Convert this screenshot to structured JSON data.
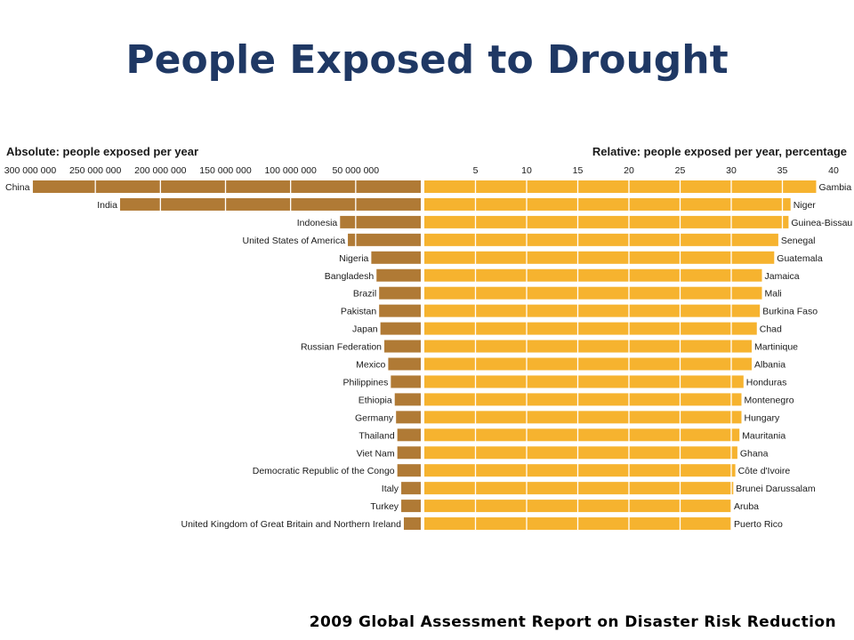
{
  "slide": {
    "title": "People Exposed to Drought",
    "footer": "2009 Global Assessment Report on Disaster Risk Reduction"
  },
  "colors": {
    "title": "#1f3864",
    "absolute_bar": "#b07a35",
    "relative_bar": "#f6b32f",
    "grid_line": "#ffffff",
    "text": "#1a1a1a"
  },
  "chart_data": [
    {
      "type": "bar",
      "orientation": "horizontal",
      "direction": "right-to-left",
      "title": "Absolute: people exposed per year",
      "xlim": [
        0,
        300000000
      ],
      "ticks": [
        300000000,
        250000000,
        200000000,
        150000000,
        100000000,
        50000000
      ],
      "tick_labels": [
        "300 000 000",
        "250 000 000",
        "200 000 000",
        "150 000 000",
        "100 000 000",
        "50 000 000"
      ],
      "categories": [
        "China",
        "India",
        "Indonesia",
        "United States of America",
        "Nigeria",
        "Bangladesh",
        "Brazil",
        "Pakistan",
        "Japan",
        "Russian Federation",
        "Mexico",
        "Philippines",
        "Ethiopia",
        "Germany",
        "Thailand",
        "Viet Nam",
        "Democratic Republic of the Congo",
        "Italy",
        "Turkey",
        "United Kingdom of Great Britain and Northern Ireland"
      ],
      "values": [
        298000000,
        231000000,
        62000000,
        56000000,
        38000000,
        34000000,
        32000000,
        32000000,
        31000000,
        28000000,
        25000000,
        23000000,
        20000000,
        19000000,
        18000000,
        18000000,
        18000000,
        15000000,
        15000000,
        13000000
      ],
      "grid": true
    },
    {
      "type": "bar",
      "orientation": "horizontal",
      "direction": "left-to-right",
      "title": "Relative: people exposed per year, percentage",
      "xlim": [
        0,
        40
      ],
      "ticks": [
        5,
        10,
        15,
        20,
        25,
        30,
        35,
        40
      ],
      "tick_labels": [
        "5",
        "10",
        "15",
        "20",
        "25",
        "30",
        "35",
        "40"
      ],
      "categories": [
        "Gambia",
        "Niger",
        "Guinea-Bissau",
        "Senegal",
        "Guatemala",
        "Jamaica",
        "Mali",
        "Burkina Faso",
        "Chad",
        "Martinique",
        "Albania",
        "Honduras",
        "Montenegro",
        "Hungary",
        "Mauritania",
        "Ghana",
        "Côte d'Ivoire",
        "Brunei Darussalam",
        "Aruba",
        "Puerto Rico"
      ],
      "values": [
        38.3,
        35.8,
        35.6,
        34.6,
        34.2,
        33.0,
        33.0,
        32.8,
        32.5,
        32.0,
        32.0,
        31.2,
        31.0,
        31.0,
        30.8,
        30.6,
        30.4,
        30.2,
        30.0,
        30.0
      ],
      "grid": true
    }
  ]
}
